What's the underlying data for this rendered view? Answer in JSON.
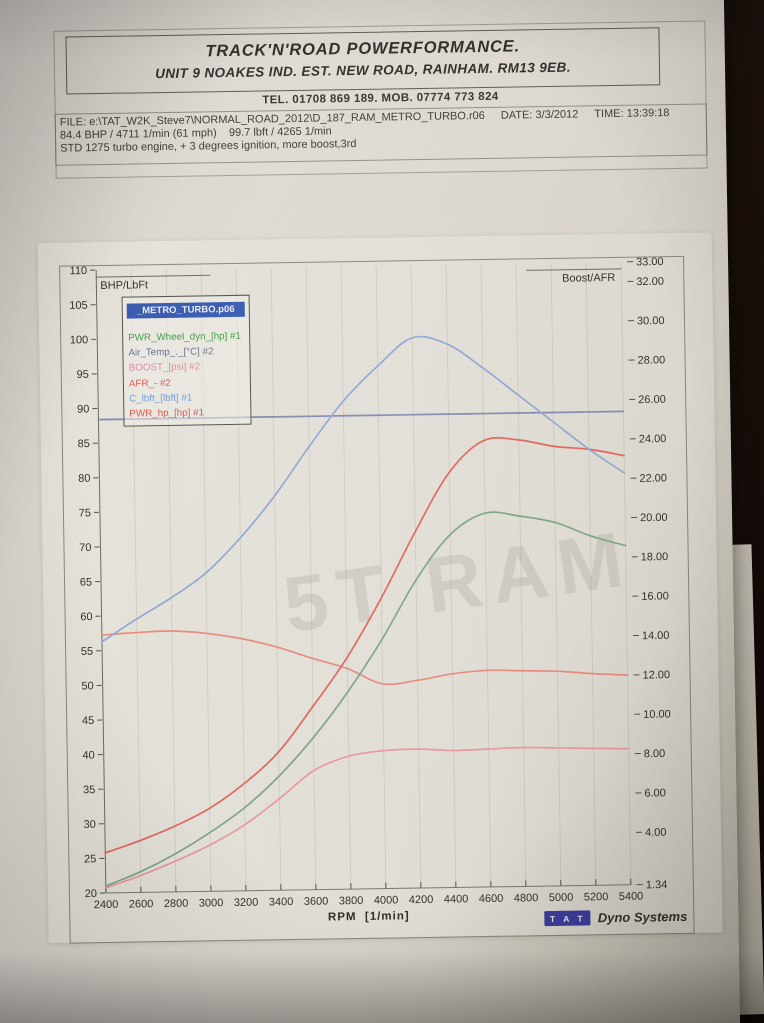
{
  "header": {
    "business_name": "TRACK'N'ROAD POWERFORMANCE.",
    "address_line": "UNIT 9 NOAKES IND. EST. NEW ROAD, RAINHAM. RM13 9EB.",
    "phone_line": "TEL. 01708 869 189. MOB. 07774 773 824"
  },
  "file_info": {
    "file_line": "FILE: e:\\TAT_W2K_Steve7\\NORMAL_ROAD_2012\\D_187_RAM_METRO_TURBO.r06",
    "date": "DATE: 3/3/2012",
    "time": "TIME: 13:39:18",
    "result_line": "84.4 BHP / 4711 1/min (61 mph)    99.7 lbft / 4265 1/min",
    "notes_line": "STD 1275 turbo engine, + 3 degrees ignition, more boost,3rd"
  },
  "watermark": {
    "text": "5T RAM"
  },
  "footer": {
    "badge": "T A T",
    "brand": "Dyno Systems",
    "badge_bg": "#3d3f9e"
  },
  "chart_data": {
    "type": "line",
    "xlabel": "RPM  [1/min]",
    "left_axis_title": "BHP/LbFt",
    "right_axis_title": "Boost/AFR",
    "x_range": [
      2400,
      5400
    ],
    "left_range": [
      20,
      110
    ],
    "right_range": [
      1.34,
      33.0
    ],
    "x_ticks": [
      2400,
      2600,
      2800,
      3000,
      3200,
      3400,
      3600,
      3800,
      4000,
      4200,
      4400,
      4600,
      4800,
      5000,
      5200,
      5400
    ],
    "left_ticks": [
      110,
      105,
      100,
      95,
      90,
      85,
      80,
      75,
      70,
      65,
      60,
      55,
      50,
      45,
      40,
      35,
      30,
      25,
      20
    ],
    "right_ticks": [
      "33.00",
      "32.00",
      "30.00",
      "28.00",
      "26.00",
      "24.00",
      "22.00",
      "20.00",
      "18.00",
      "16.00",
      "14.00",
      "12.00",
      "10.00",
      "8.00",
      "6.00",
      "4.00",
      "1.34"
    ],
    "grid": "vertical-only",
    "legend_position": "top-left",
    "x": [
      2400,
      2600,
      2800,
      3000,
      3200,
      3400,
      3600,
      3800,
      4000,
      4200,
      4400,
      4600,
      4800,
      5000,
      5200,
      5400
    ],
    "series": [
      {
        "id": "air-temp-c",
        "name": "Air_Temp_._[°C] #2",
        "axis": "right",
        "color": "#8489b0",
        "values": [
          25.4,
          25.4,
          25.4,
          25.4,
          25.4,
          25.4,
          25.4,
          25.4,
          25.4,
          25.4,
          25.4,
          25.4,
          25.4,
          25.4,
          25.4,
          25.4
        ]
      },
      {
        "id": "boost-psi",
        "name": "BOOST_[psi] #2",
        "axis": "right",
        "color": "#e898a0",
        "values": [
          1.6,
          2.2,
          2.9,
          3.7,
          4.7,
          6.0,
          7.4,
          8.1,
          8.35,
          8.4,
          8.3,
          8.35,
          8.4,
          8.35,
          8.3,
          8.25
        ]
      },
      {
        "id": "afr",
        "name": "AFR_- #2",
        "axis": "right",
        "color": "#e88a7e",
        "values": [
          14.45,
          14.55,
          14.6,
          14.45,
          14.15,
          13.7,
          13.1,
          12.55,
          11.75,
          11.9,
          12.2,
          12.35,
          12.3,
          12.25,
          12.1,
          12.0
        ]
      },
      {
        "id": "wheel-power-hp",
        "name": "PWR_Wheel_dyn_[hp] #1",
        "axis": "left",
        "color": "#7da684",
        "values": [
          21,
          23,
          25.5,
          28.5,
          32,
          36.5,
          42,
          48.5,
          56,
          64.5,
          71,
          74,
          73.5,
          72.5,
          70.5,
          69
        ]
      },
      {
        "id": "power-hp",
        "name": "PWR_hp_[hp] #1",
        "axis": "left",
        "color": "#e0655c",
        "values": [
          25.8,
          27.5,
          29.5,
          32,
          35.5,
          40,
          46.5,
          53.5,
          62,
          71.5,
          80,
          84.5,
          84.5,
          83.5,
          83,
          82
        ]
      },
      {
        "id": "torque-lbft",
        "name": "C_lbft_[lbft] #1",
        "axis": "left",
        "color": "#8fa8d4",
        "values": [
          56.3,
          59.5,
          62.5,
          66,
          71,
          77,
          84,
          90.5,
          95.5,
          99.5,
          98.5,
          95,
          91,
          87,
          83,
          79.5
        ]
      }
    ],
    "legend": {
      "title": "_METRO_TURBO.p06",
      "title_bg": "#3a5cb0",
      "entries": [
        {
          "label": "PWR_Wheel_dyn_[hp] #1",
          "color": "#3f9f44"
        },
        {
          "label": "Air_Temp_._[°C] #2",
          "color": "#6b7590"
        },
        {
          "label": "BOOST_[psi] #2",
          "color": "#ea86a6"
        },
        {
          "label": "AFR_- #2",
          "color": "#e25a4e"
        },
        {
          "label": "C_lbft_[lbft] #1",
          "color": "#74a0d8"
        },
        {
          "label": "PWR_hp_[hp] #1",
          "color": "#e0564e"
        }
      ]
    },
    "peak_annotations": {
      "max_power": "84.4 BHP / 4711 1/min (61 mph)",
      "max_torque": "99.7 lbft / 4265 1/min"
    }
  }
}
